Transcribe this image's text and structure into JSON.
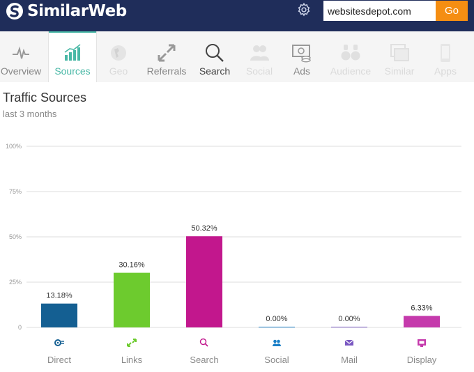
{
  "header": {
    "logo_text": "SimilarWeb",
    "search": {
      "value": "websitesdepot.com"
    },
    "go_label": "Go"
  },
  "nav": {
    "items": [
      {
        "key": "overview",
        "label": "Overview",
        "icon": "overview-icon",
        "state": "enabled"
      },
      {
        "key": "sources",
        "label": "Sources",
        "icon": "sources-icon",
        "state": "active"
      },
      {
        "key": "geo",
        "label": "Geo",
        "icon": "geo-icon",
        "state": "disabled"
      },
      {
        "key": "referrals",
        "label": "Referrals",
        "icon": "referrals-icon",
        "state": "enabled"
      },
      {
        "key": "search",
        "label": "Search",
        "icon": "search-icon",
        "state": "enabled-dark"
      },
      {
        "key": "social",
        "label": "Social",
        "icon": "social-icon",
        "state": "disabled"
      },
      {
        "key": "ads",
        "label": "Ads",
        "icon": "ads-icon",
        "state": "enabled"
      },
      {
        "key": "audience",
        "label": "Audience",
        "icon": "audience-icon",
        "state": "disabled"
      },
      {
        "key": "similar",
        "label": "Similar",
        "icon": "similar-icon",
        "state": "disabled"
      },
      {
        "key": "apps",
        "label": "Apps",
        "icon": "apps-icon",
        "state": "disabled"
      }
    ]
  },
  "main": {
    "title": "Traffic Sources",
    "subtitle": "last 3 months"
  },
  "chart_data": {
    "type": "bar",
    "title": "",
    "xlabel": "",
    "ylabel": "",
    "ylim": [
      0,
      100
    ],
    "yticks": [
      "0",
      "25%",
      "50%",
      "75%",
      "100%"
    ],
    "grid": true,
    "categories": [
      "Direct",
      "Links",
      "Search",
      "Social",
      "Mail",
      "Display"
    ],
    "values": [
      13.18,
      30.16,
      50.32,
      0.0,
      0.0,
      6.33
    ],
    "value_labels": [
      "13.18%",
      "30.16%",
      "50.32%",
      "0.00%",
      "0.00%",
      "6.33%"
    ],
    "colors": [
      "#145f92",
      "#6dcb2e",
      "#c2178d",
      "#1a7fc7",
      "#7a58c2",
      "#c53aac"
    ],
    "icons": [
      "direct-icon",
      "links-icon",
      "search-icon",
      "social-icon",
      "mail-icon",
      "display-icon"
    ]
  }
}
